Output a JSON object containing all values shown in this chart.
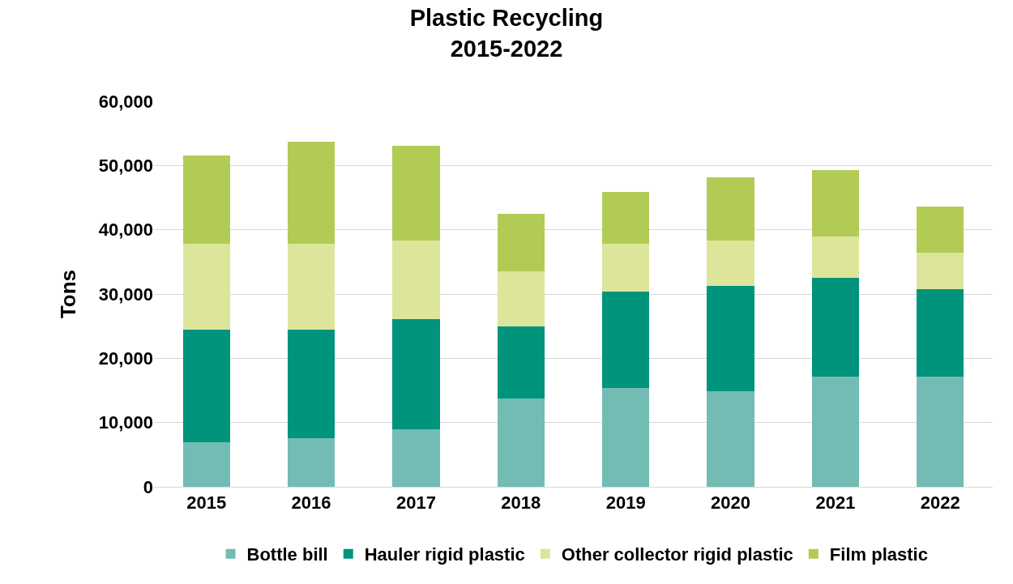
{
  "chart_data": {
    "type": "bar",
    "stacked": true,
    "title": "Plastic Recycling\n2015-2022",
    "ylabel": "Tons",
    "categories": [
      "2015",
      "2016",
      "2017",
      "2018",
      "2019",
      "2020",
      "2021",
      "2022"
    ],
    "series": [
      {
        "name": "Bottle bill",
        "color": "#73bcb4",
        "values": [
          6900,
          7600,
          9000,
          13700,
          15400,
          14900,
          17100,
          17200
        ]
      },
      {
        "name": "Hauler rigid plastic",
        "color": "#00947c",
        "values": [
          17500,
          16800,
          17100,
          11300,
          15000,
          16300,
          15400,
          13600
        ]
      },
      {
        "name": "Other collector rigid plastic",
        "color": "#dde59b",
        "values": [
          13400,
          13400,
          12200,
          8500,
          7400,
          7100,
          6400,
          5600
        ]
      },
      {
        "name": "Film plastic",
        "color": "#b2cb55",
        "values": [
          13700,
          15900,
          14800,
          9000,
          8100,
          9800,
          10400,
          7200
        ]
      }
    ],
    "ylim": [
      0,
      60000
    ],
    "yticks": [
      {
        "value": 0,
        "label": "0"
      },
      {
        "value": 10000,
        "label": "10,000"
      },
      {
        "value": 20000,
        "label": "20,000"
      },
      {
        "value": 30000,
        "label": "30,000"
      },
      {
        "value": 40000,
        "label": "40,000"
      },
      {
        "value": 50000,
        "label": "50,000"
      },
      {
        "value": 60000,
        "label": "60,000"
      }
    ],
    "grid": "y",
    "legend": "bottom"
  }
}
